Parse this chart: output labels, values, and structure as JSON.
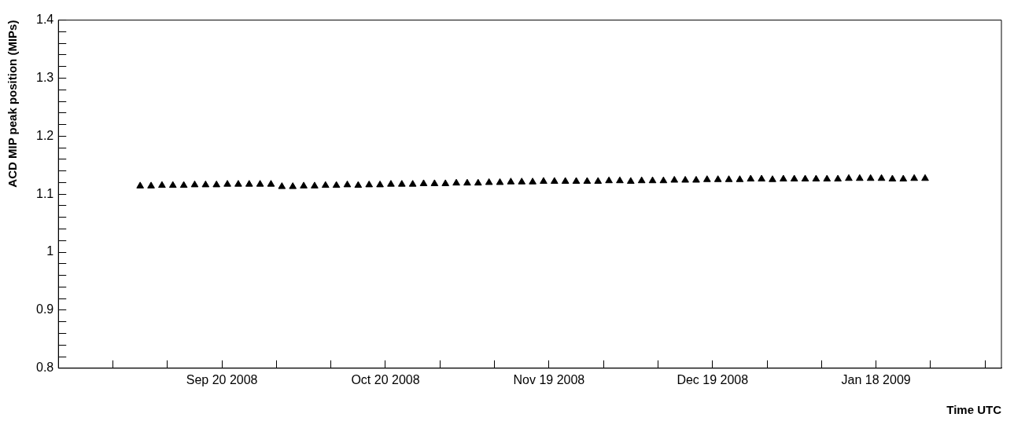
{
  "chart_data": {
    "type": "scatter",
    "xlabel": "Time UTC",
    "ylabel": "ACD MIP peak position (MIPs)",
    "x": [
      "2008-09-05",
      "2008-09-07",
      "2008-09-09",
      "2008-09-11",
      "2008-09-13",
      "2008-09-15",
      "2008-09-17",
      "2008-09-19",
      "2008-09-21",
      "2008-09-23",
      "2008-09-25",
      "2008-09-27",
      "2008-09-29",
      "2008-10-01",
      "2008-10-03",
      "2008-10-05",
      "2008-10-07",
      "2008-10-09",
      "2008-10-11",
      "2008-10-13",
      "2008-10-15",
      "2008-10-17",
      "2008-10-19",
      "2008-10-21",
      "2008-10-23",
      "2008-10-25",
      "2008-10-27",
      "2008-10-29",
      "2008-10-31",
      "2008-11-02",
      "2008-11-04",
      "2008-11-06",
      "2008-11-08",
      "2008-11-10",
      "2008-11-12",
      "2008-11-14",
      "2008-11-16",
      "2008-11-18",
      "2008-11-20",
      "2008-11-22",
      "2008-11-24",
      "2008-11-26",
      "2008-11-28",
      "2008-11-30",
      "2008-12-02",
      "2008-12-04",
      "2008-12-06",
      "2008-12-08",
      "2008-12-10",
      "2008-12-12",
      "2008-12-14",
      "2008-12-16",
      "2008-12-18",
      "2008-12-20",
      "2008-12-22",
      "2008-12-24",
      "2008-12-26",
      "2008-12-28",
      "2008-12-30",
      "2009-01-01",
      "2009-01-03",
      "2009-01-05",
      "2009-01-07",
      "2009-01-09",
      "2009-01-11",
      "2009-01-13",
      "2009-01-15",
      "2009-01-17",
      "2009-01-19",
      "2009-01-21",
      "2009-01-23",
      "2009-01-25",
      "2009-01-27"
    ],
    "series": [
      {
        "color": "#000000",
        "values": [
          1.114,
          1.114,
          1.115,
          1.115,
          1.115,
          1.116,
          1.116,
          1.116,
          1.117,
          1.117,
          1.117,
          1.117,
          1.117,
          1.113,
          1.113,
          1.114,
          1.114,
          1.115,
          1.115,
          1.116,
          1.115,
          1.116,
          1.116,
          1.117,
          1.117,
          1.117,
          1.118,
          1.118,
          1.118,
          1.119,
          1.119,
          1.119,
          1.12,
          1.12,
          1.121,
          1.121,
          1.121,
          1.122,
          1.122,
          1.122,
          1.122,
          1.122,
          1.122,
          1.123,
          1.123,
          1.122,
          1.123,
          1.123,
          1.123,
          1.124,
          1.124,
          1.124,
          1.125,
          1.125,
          1.125,
          1.125,
          1.126,
          1.126,
          1.125,
          1.126,
          1.126,
          1.126,
          1.126,
          1.126,
          1.126,
          1.127,
          1.127,
          1.127,
          1.127,
          1.126,
          1.126,
          1.127,
          1.127
        ]
      }
    ],
    "marker": "triangle",
    "legend": false,
    "grid": false,
    "xlim": [
      "2008-08-21",
      "2009-02-10"
    ],
    "xticks": [
      {
        "value": "2008-08-31",
        "label": null
      },
      {
        "value": "2008-09-10",
        "label": null
      },
      {
        "value": "2008-09-20",
        "label": "Sep 20 2008"
      },
      {
        "value": "2008-09-30",
        "label": null
      },
      {
        "value": "2008-10-10",
        "label": null
      },
      {
        "value": "2008-10-20",
        "label": "Oct 20 2008"
      },
      {
        "value": "2008-10-30",
        "label": null
      },
      {
        "value": "2008-11-09",
        "label": null
      },
      {
        "value": "2008-11-19",
        "label": "Nov 19 2008"
      },
      {
        "value": "2008-11-29",
        "label": null
      },
      {
        "value": "2008-12-09",
        "label": null
      },
      {
        "value": "2008-12-19",
        "label": "Dec 19 2008"
      },
      {
        "value": "2008-12-29",
        "label": null
      },
      {
        "value": "2009-01-08",
        "label": null
      },
      {
        "value": "2009-01-18",
        "label": "Jan 18 2009"
      },
      {
        "value": "2009-01-28",
        "label": null
      },
      {
        "value": "2009-02-07",
        "label": null
      }
    ],
    "ylim": [
      0.8,
      1.4
    ],
    "yticks": [
      {
        "value": 0.8,
        "label": "0.8"
      },
      {
        "value": 0.82,
        "label": null
      },
      {
        "value": 0.84,
        "label": null
      },
      {
        "value": 0.86,
        "label": null
      },
      {
        "value": 0.88,
        "label": null
      },
      {
        "value": 0.9,
        "label": "0.9"
      },
      {
        "value": 0.92,
        "label": null
      },
      {
        "value": 0.94,
        "label": null
      },
      {
        "value": 0.96,
        "label": null
      },
      {
        "value": 0.98,
        "label": null
      },
      {
        "value": 1,
        "label": "1"
      },
      {
        "value": 1.02,
        "label": null
      },
      {
        "value": 1.04,
        "label": null
      },
      {
        "value": 1.06,
        "label": null
      },
      {
        "value": 1.08,
        "label": null
      },
      {
        "value": 1.1,
        "label": "1.1"
      },
      {
        "value": 1.12,
        "label": null
      },
      {
        "value": 1.14,
        "label": null
      },
      {
        "value": 1.16,
        "label": null
      },
      {
        "value": 1.18,
        "label": null
      },
      {
        "value": 1.2,
        "label": "1.2"
      },
      {
        "value": 1.22,
        "label": null
      },
      {
        "value": 1.24,
        "label": null
      },
      {
        "value": 1.26,
        "label": null
      },
      {
        "value": 1.28,
        "label": null
      },
      {
        "value": 1.3,
        "label": "1.3"
      },
      {
        "value": 1.32,
        "label": null
      },
      {
        "value": 1.34,
        "label": null
      },
      {
        "value": 1.36,
        "label": null
      },
      {
        "value": 1.38,
        "label": null
      },
      {
        "value": 1.4,
        "label": "1.4"
      }
    ]
  }
}
